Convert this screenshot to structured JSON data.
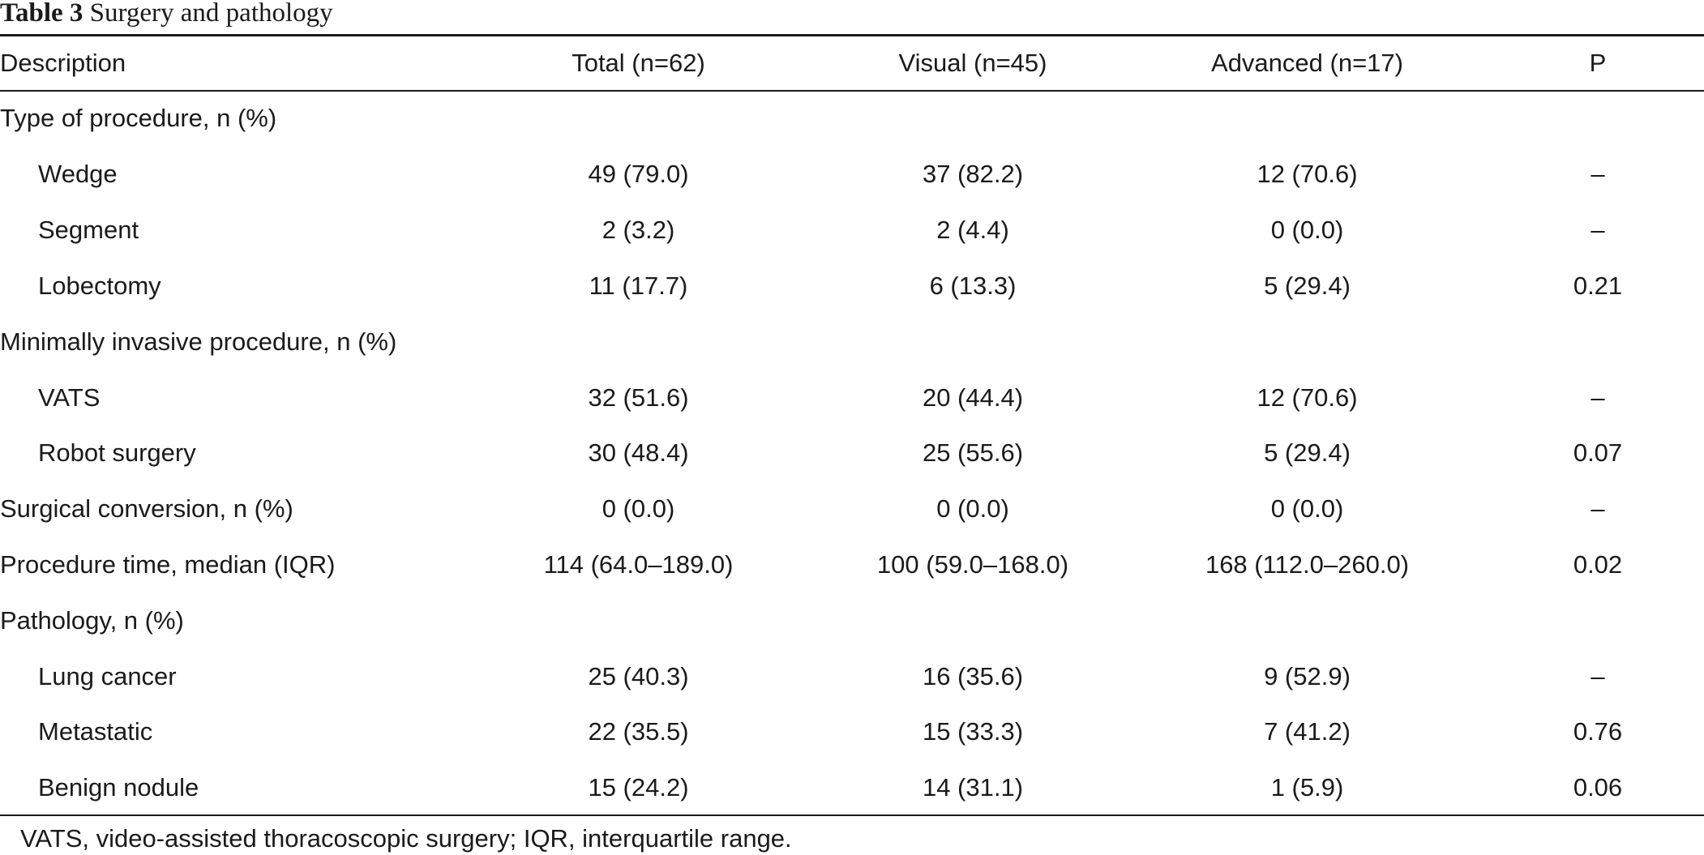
{
  "caption": {
    "label": "Table 3",
    "text": "Surgery and pathology"
  },
  "table": {
    "headers": [
      "Description",
      "Total (n=62)",
      "Visual (n=45)",
      "Advanced (n=17)",
      "P"
    ],
    "rows": [
      {
        "description": "Type of procedure, n (%)",
        "total": "",
        "visual": "",
        "advanced": "",
        "p": "",
        "indent": false
      },
      {
        "description": "Wedge",
        "total": "49 (79.0)",
        "visual": "37 (82.2)",
        "advanced": "12 (70.6)",
        "p": "–",
        "indent": true
      },
      {
        "description": "Segment",
        "total": "2 (3.2)",
        "visual": "2 (4.4)",
        "advanced": "0 (0.0)",
        "p": "–",
        "indent": true
      },
      {
        "description": "Lobectomy",
        "total": "11 (17.7)",
        "visual": "6 (13.3)",
        "advanced": "5 (29.4)",
        "p": "0.21",
        "indent": true
      },
      {
        "description": "Minimally invasive procedure, n (%)",
        "total": "",
        "visual": "",
        "advanced": "",
        "p": "",
        "indent": false
      },
      {
        "description": "VATS",
        "total": "32 (51.6)",
        "visual": "20 (44.4)",
        "advanced": "12 (70.6)",
        "p": "–",
        "indent": true
      },
      {
        "description": "Robot surgery",
        "total": "30 (48.4)",
        "visual": "25 (55.6)",
        "advanced": "5 (29.4)",
        "p": "0.07",
        "indent": true
      },
      {
        "description": "Surgical conversion, n (%)",
        "total": "0 (0.0)",
        "visual": "0 (0.0)",
        "advanced": "0 (0.0)",
        "p": "–",
        "indent": false
      },
      {
        "description": "Procedure time, median (IQR)",
        "total": "114 (64.0–189.0)",
        "visual": "100 (59.0–168.0)",
        "advanced": "168 (112.0–260.0)",
        "p": "0.02",
        "indent": false
      },
      {
        "description": "Pathology, n (%)",
        "total": "",
        "visual": "",
        "advanced": "",
        "p": "",
        "indent": false
      },
      {
        "description": "Lung cancer",
        "total": "25 (40.3)",
        "visual": "16 (35.6)",
        "advanced": "9 (52.9)",
        "p": "–",
        "indent": true
      },
      {
        "description": "Metastatic",
        "total": "22 (35.5)",
        "visual": "15 (33.3)",
        "advanced": "7 (41.2)",
        "p": "0.76",
        "indent": true
      },
      {
        "description": "Benign nodule",
        "total": "15 (24.2)",
        "visual": "14 (31.1)",
        "advanced": "1 (5.9)",
        "p": "0.06",
        "indent": true
      }
    ]
  },
  "footnote": "VATS, video-assisted thoracoscopic surgery; IQR, interquartile range."
}
